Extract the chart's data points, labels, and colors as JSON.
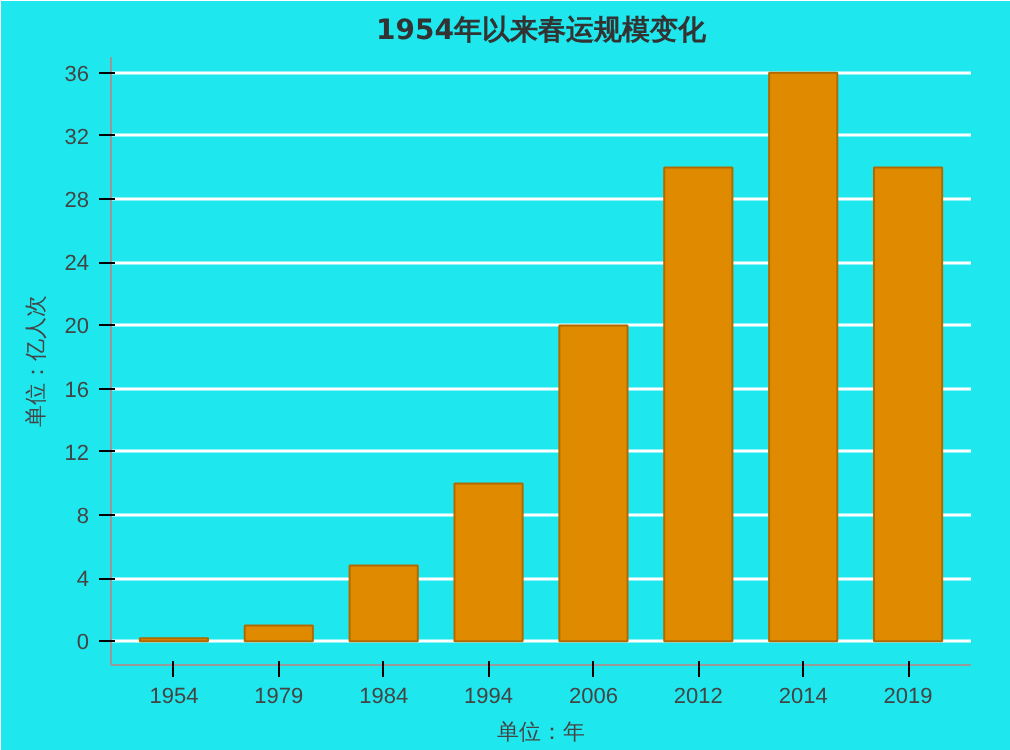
{
  "chart_data": {
    "type": "bar",
    "title": "1954年以来春运规模变化",
    "xlabel": "单位：年",
    "ylabel": "单位：亿人次",
    "categories": [
      "1954",
      "1979",
      "1984",
      "1994",
      "2006",
      "2012",
      "2014",
      "2019"
    ],
    "values": [
      0.2,
      1,
      4.8,
      10,
      20,
      30,
      36,
      30
    ],
    "color": "#e08a00",
    "ylim": [
      -1.5,
      37
    ],
    "yticks": [
      0,
      4,
      8,
      12,
      16,
      20,
      24,
      28,
      32,
      36
    ],
    "grid": "y"
  }
}
